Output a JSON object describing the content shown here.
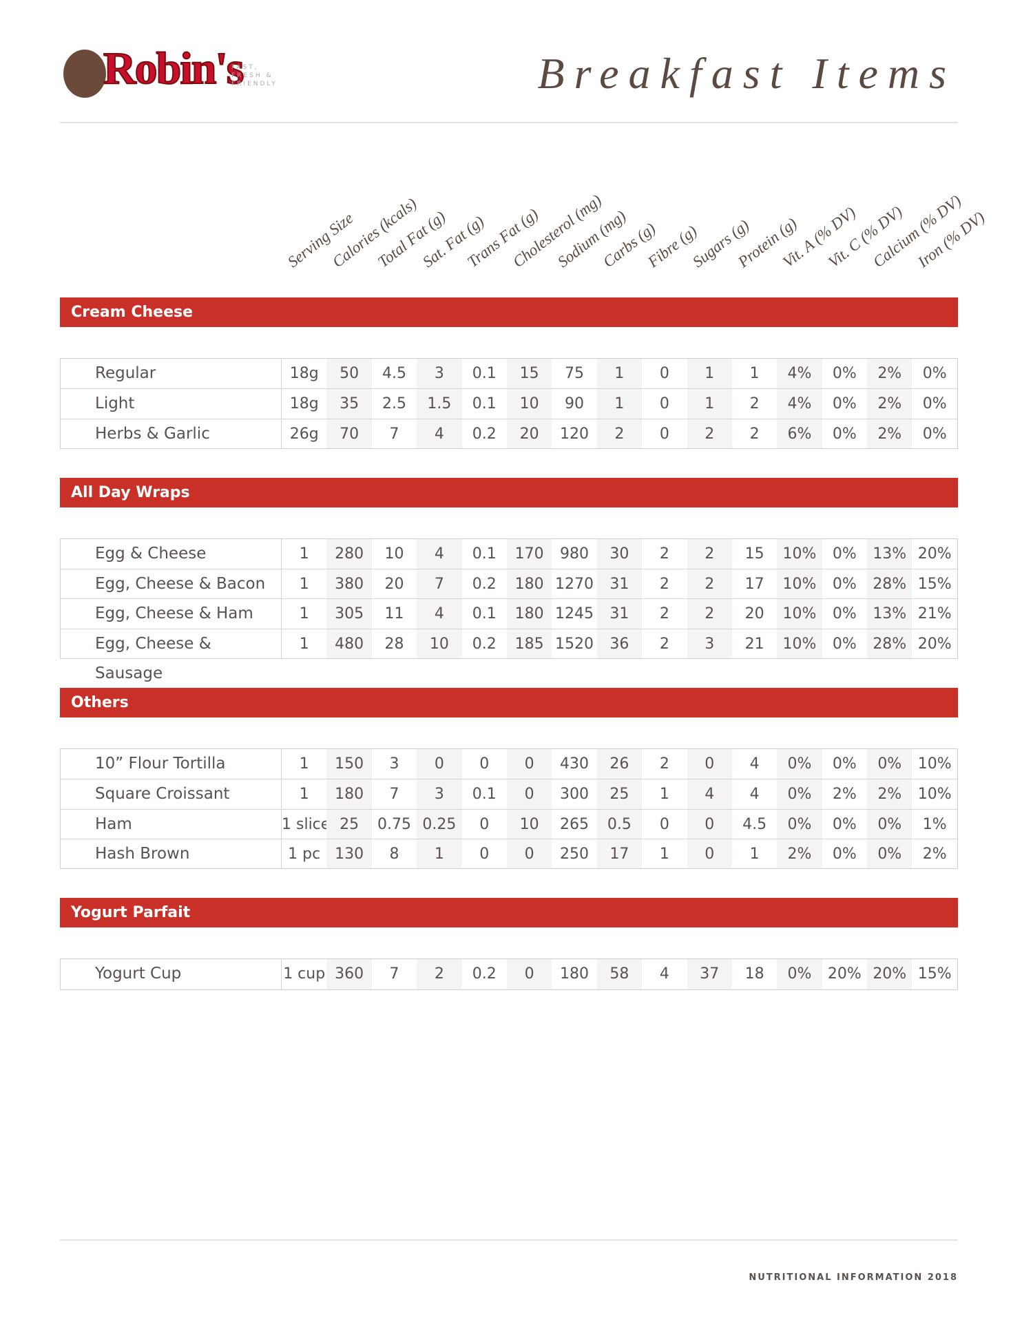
{
  "header": {
    "logo": "Robin's",
    "tagline": [
      "FAST,",
      "FRESH &",
      "FRIENDLY"
    ],
    "title": "Breakfast Items"
  },
  "columns": [
    "Serving Size",
    "Calories (kcals)",
    "Total Fat (g)",
    "Sat. Fat (g)",
    "Trans Fat (g)",
    "Cholesterol (mg)",
    "Sodium (mg)",
    "Carbs (g)",
    "Fibre (g)",
    "Sugars (g)",
    "Protein (g)",
    "Vit. A (% DV)",
    "Vit. C (% DV)",
    "Calcium (% DV)",
    "Iron (% DV)"
  ],
  "sections": [
    {
      "title": "Cream Cheese",
      "rows": [
        [
          "Regular",
          "18g",
          "50",
          "4.5",
          "3",
          "0.1",
          "15",
          "75",
          "1",
          "0",
          "1",
          "1",
          "4%",
          "0%",
          "2%",
          "0%"
        ],
        [
          "Light",
          "18g",
          "35",
          "2.5",
          "1.5",
          "0.1",
          "10",
          "90",
          "1",
          "0",
          "1",
          "2",
          "4%",
          "0%",
          "2%",
          "0%"
        ],
        [
          "Herbs & Garlic",
          "26g",
          "70",
          "7",
          "4",
          "0.2",
          "20",
          "120",
          "2",
          "0",
          "2",
          "2",
          "6%",
          "0%",
          "2%",
          "0%"
        ]
      ]
    },
    {
      "title": "All Day Wraps",
      "rows": [
        [
          "Egg & Cheese",
          "1",
          "280",
          "10",
          "4",
          "0.1",
          "170",
          "980",
          "30",
          "2",
          "2",
          "15",
          "10%",
          "0%",
          "13%",
          "20%"
        ],
        [
          "Egg, Cheese & Bacon",
          "1",
          "380",
          "20",
          "7",
          "0.2",
          "180",
          "1270",
          "31",
          "2",
          "2",
          "17",
          "10%",
          "0%",
          "28%",
          "15%"
        ],
        [
          "Egg, Cheese & Ham",
          "1",
          "305",
          "11",
          "4",
          "0.1",
          "180",
          "1245",
          "31",
          "2",
          "2",
          "20",
          "10%",
          "0%",
          "13%",
          "21%"
        ],
        [
          "Egg, Cheese & Sausage",
          "1",
          "480",
          "28",
          "10",
          "0.2",
          "185",
          "1520",
          "36",
          "2",
          "3",
          "21",
          "10%",
          "0%",
          "28%",
          "20%"
        ]
      ]
    },
    {
      "title": "Others",
      "rows": [
        [
          "10” Flour Tortilla",
          "1",
          "150",
          "3",
          "0",
          "0",
          "0",
          "430",
          "26",
          "2",
          "0",
          "4",
          "0%",
          "0%",
          "0%",
          "10%"
        ],
        [
          "Square Croissant",
          "1",
          "180",
          "7",
          "3",
          "0.1",
          "0",
          "300",
          "25",
          "1",
          "4",
          "4",
          "0%",
          "2%",
          "2%",
          "10%"
        ],
        [
          "Ham",
          "1 slice",
          "25",
          "0.75",
          "0.25",
          "0",
          "10",
          "265",
          "0.5",
          "0",
          "0",
          "4.5",
          "0%",
          "0%",
          "0%",
          "1%"
        ],
        [
          "Hash Brown",
          "1 pc",
          "130",
          "8",
          "1",
          "0",
          "0",
          "250",
          "17",
          "1",
          "0",
          "1",
          "2%",
          "0%",
          "0%",
          "2%"
        ]
      ]
    },
    {
      "title": "Yogurt Parfait",
      "rows": [
        [
          "Yogurt Cup",
          "1 cup",
          "360",
          "7",
          "2",
          "0.2",
          "0",
          "180",
          "58",
          "4",
          "37",
          "18",
          "0%",
          "20%",
          "20%",
          "15%"
        ]
      ]
    }
  ],
  "footer": "NUTRITIONAL INFORMATION 2018"
}
